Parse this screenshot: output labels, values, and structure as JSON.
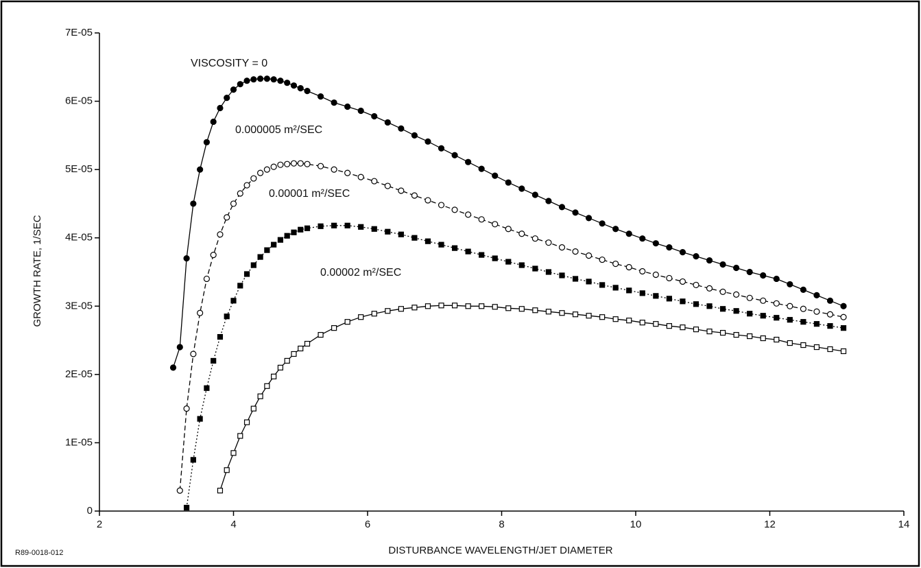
{
  "chart_data": {
    "type": "line",
    "xlabel": "DISTURBANCE WAVELENGTH/JET DIAMETER",
    "ylabel": "GROWTH RATE, 1/SEC",
    "footnote": "R89-0018-012",
    "xlim": [
      2,
      14
    ],
    "xticks": [
      2,
      4,
      6,
      8,
      10,
      12,
      14
    ],
    "ylim": [
      0,
      7e-05
    ],
    "yticks": [
      0,
      {
        "value": 1e-05,
        "label": "1E-05"
      },
      {
        "value": 2e-05,
        "label": "2E-05"
      },
      {
        "value": 3e-05,
        "label": "3E-05"
      },
      {
        "value": 4e-05,
        "label": "4E-05"
      },
      {
        "value": 5e-05,
        "label": "5E-05"
      },
      {
        "value": 6e-05,
        "label": "6E-05"
      },
      {
        "value": 7e-05,
        "label": "7E-05"
      }
    ],
    "x": [
      3.1,
      3.2,
      3.3,
      3.4,
      3.5,
      3.6,
      3.7,
      3.8,
      3.9,
      4.0,
      4.1,
      4.2,
      4.3,
      4.4,
      4.5,
      4.6,
      4.7,
      4.8,
      4.9,
      5.0,
      5.1,
      5.3,
      5.5,
      5.7,
      5.9,
      6.1,
      6.3,
      6.5,
      6.7,
      6.9,
      7.1,
      7.3,
      7.5,
      7.7,
      7.9,
      8.1,
      8.3,
      8.5,
      8.7,
      8.9,
      9.1,
      9.3,
      9.5,
      9.7,
      9.9,
      10.1,
      10.3,
      10.5,
      10.7,
      10.9,
      11.1,
      11.3,
      11.5,
      11.7,
      11.9,
      12.1,
      12.3,
      12.5,
      12.7,
      12.9,
      13.1
    ],
    "series": [
      {
        "name": "VISCOSITY = 0",
        "color": "#000000",
        "marker": "filled-circle",
        "line": "solid",
        "values": [
          2.1e-05,
          2.4e-05,
          3.7e-05,
          4.5e-05,
          5e-05,
          5.4e-05,
          5.7e-05,
          5.9e-05,
          6.05e-05,
          6.17e-05,
          6.25e-05,
          6.3e-05,
          6.32e-05,
          6.33e-05,
          6.33e-05,
          6.32e-05,
          6.3e-05,
          6.27e-05,
          6.23e-05,
          6.19e-05,
          6.15e-05,
          6.07e-05,
          5.98e-05,
          5.92e-05,
          5.86e-05,
          5.78e-05,
          5.69e-05,
          5.6e-05,
          5.5e-05,
          5.41e-05,
          5.31e-05,
          5.21e-05,
          5.11e-05,
          5.01e-05,
          4.91e-05,
          4.81e-05,
          4.72e-05,
          4.63e-05,
          4.54e-05,
          4.45e-05,
          4.37e-05,
          4.29e-05,
          4.21e-05,
          4.13e-05,
          4.06e-05,
          3.99e-05,
          3.92e-05,
          3.86e-05,
          3.79e-05,
          3.73e-05,
          3.67e-05,
          3.61e-05,
          3.56e-05,
          3.5e-05,
          3.45e-05,
          3.4e-05,
          3.32e-05,
          3.24e-05,
          3.16e-05,
          3.08e-05,
          3e-05
        ]
      },
      {
        "name": "0.000005 m²/SEC",
        "color": "#000000",
        "marker": "open-circle",
        "line": "dashed",
        "values": [
          null,
          3e-06,
          1.5e-05,
          2.3e-05,
          2.9e-05,
          3.4e-05,
          3.75e-05,
          4.05e-05,
          4.3e-05,
          4.5e-05,
          4.65e-05,
          4.77e-05,
          4.87e-05,
          4.95e-05,
          5e-05,
          5.04e-05,
          5.07e-05,
          5.08e-05,
          5.09e-05,
          5.09e-05,
          5.08e-05,
          5.05e-05,
          5e-05,
          4.95e-05,
          4.89e-05,
          4.83e-05,
          4.76e-05,
          4.69e-05,
          4.62e-05,
          4.55e-05,
          4.48e-05,
          4.41e-05,
          4.34e-05,
          4.27e-05,
          4.2e-05,
          4.13e-05,
          4.06e-05,
          3.99e-05,
          3.93e-05,
          3.86e-05,
          3.8e-05,
          3.74e-05,
          3.68e-05,
          3.62e-05,
          3.57e-05,
          3.51e-05,
          3.46e-05,
          3.41e-05,
          3.36e-05,
          3.31e-05,
          3.26e-05,
          3.21e-05,
          3.17e-05,
          3.12e-05,
          3.08e-05,
          3.04e-05,
          3e-05,
          2.96e-05,
          2.92e-05,
          2.88e-05,
          2.84e-05
        ]
      },
      {
        "name": "0.00001 m²/SEC",
        "color": "#000000",
        "marker": "filled-square",
        "line": "dotted",
        "values": [
          null,
          null,
          5e-07,
          7.5e-06,
          1.35e-05,
          1.8e-05,
          2.2e-05,
          2.55e-05,
          2.85e-05,
          3.08e-05,
          3.3e-05,
          3.47e-05,
          3.6e-05,
          3.72e-05,
          3.82e-05,
          3.9e-05,
          3.97e-05,
          4.03e-05,
          4.08e-05,
          4.12e-05,
          4.14e-05,
          4.17e-05,
          4.18e-05,
          4.18e-05,
          4.16e-05,
          4.13e-05,
          4.09e-05,
          4.05e-05,
          4e-05,
          3.95e-05,
          3.9e-05,
          3.85e-05,
          3.8e-05,
          3.75e-05,
          3.7e-05,
          3.65e-05,
          3.6e-05,
          3.55e-05,
          3.5e-05,
          3.45e-05,
          3.4e-05,
          3.36e-05,
          3.31e-05,
          3.27e-05,
          3.23e-05,
          3.19e-05,
          3.15e-05,
          3.11e-05,
          3.07e-05,
          3.03e-05,
          3e-05,
          2.96e-05,
          2.93e-05,
          2.89e-05,
          2.86e-05,
          2.83e-05,
          2.8e-05,
          2.77e-05,
          2.74e-05,
          2.71e-05,
          2.68e-05
        ]
      },
      {
        "name": "0.00002 m²/SEC",
        "color": "#000000",
        "marker": "open-square",
        "line": "solid",
        "values": [
          null,
          null,
          null,
          null,
          null,
          null,
          null,
          3e-06,
          6e-06,
          8.5e-06,
          1.1e-05,
          1.3e-05,
          1.5e-05,
          1.68e-05,
          1.83e-05,
          1.97e-05,
          2.1e-05,
          2.2e-05,
          2.3e-05,
          2.38e-05,
          2.45e-05,
          2.58e-05,
          2.68e-05,
          2.77e-05,
          2.84e-05,
          2.89e-05,
          2.93e-05,
          2.96e-05,
          2.98e-05,
          3e-05,
          3.01e-05,
          3.01e-05,
          3e-05,
          3e-05,
          2.99e-05,
          2.97e-05,
          2.96e-05,
          2.94e-05,
          2.92e-05,
          2.9e-05,
          2.88e-05,
          2.86e-05,
          2.84e-05,
          2.81e-05,
          2.79e-05,
          2.76e-05,
          2.74e-05,
          2.71e-05,
          2.69e-05,
          2.66e-05,
          2.63e-05,
          2.61e-05,
          2.58e-05,
          2.56e-05,
          2.53e-05,
          2.51e-05,
          2.46e-05,
          2.43e-05,
          2.4e-05,
          2.37e-05,
          2.34e-05
        ]
      }
    ]
  }
}
